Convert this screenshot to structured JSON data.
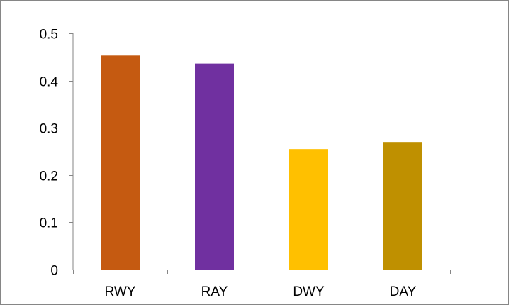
{
  "chart_data": {
    "type": "bar",
    "title": "",
    "xlabel": "",
    "ylabel": "",
    "categories": [
      "RWY",
      "RAY",
      "DWY",
      "DAY"
    ],
    "values": [
      0.453,
      0.436,
      0.255,
      0.27
    ],
    "colors": [
      "#C55A11",
      "#7030A0",
      "#FFC000",
      "#BF9000"
    ],
    "ylim": [
      0,
      0.5
    ],
    "yticks": [
      "0",
      "0.1",
      "0.2",
      "0.3",
      "0.4",
      "0.5"
    ],
    "grid": false,
    "legend": "none"
  }
}
